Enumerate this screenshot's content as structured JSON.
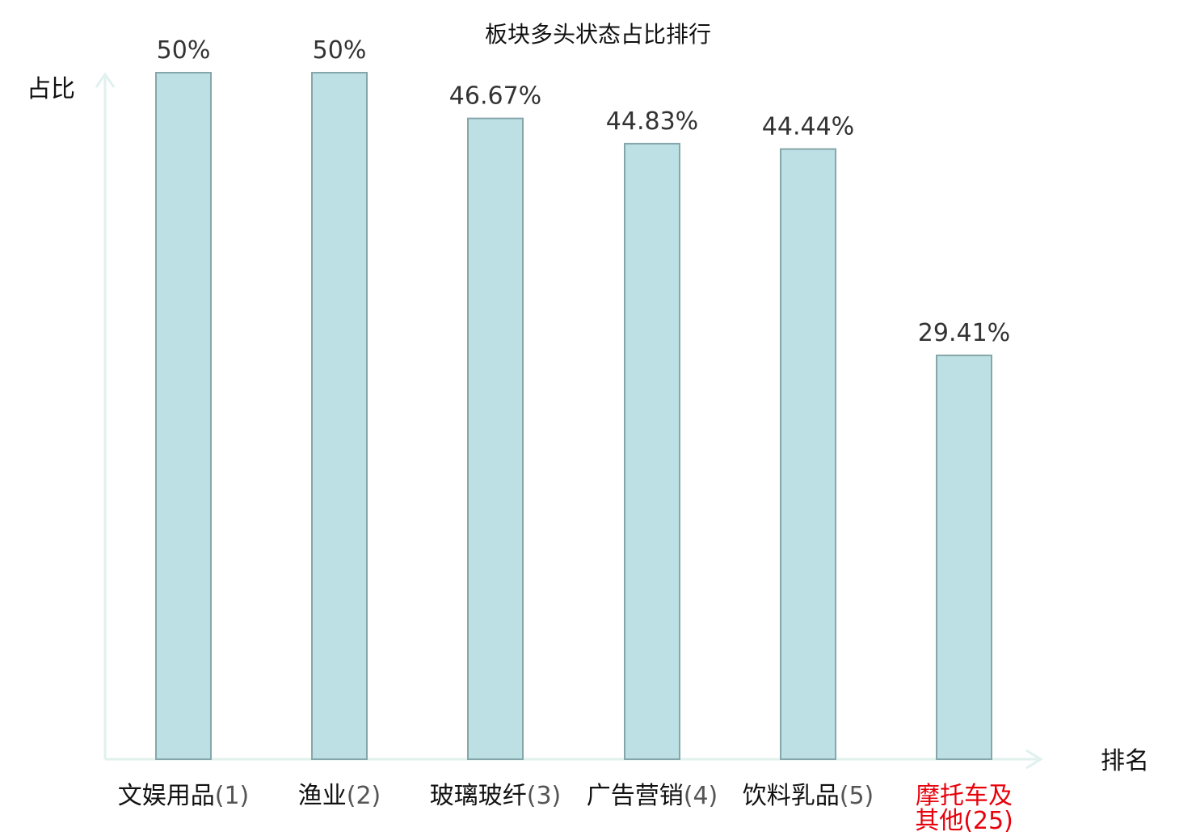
{
  "chart_data": {
    "type": "bar",
    "title": "板块多头状态占比排行",
    "xlabel": "排名",
    "ylabel": "占比",
    "ylim": [
      0,
      50
    ],
    "grid": false,
    "categories": [
      {
        "name_lines": [
          "文娱用品"
        ],
        "rank": "(1)",
        "highlight": false
      },
      {
        "name_lines": [
          "渔业"
        ],
        "rank": "(2)",
        "highlight": false
      },
      {
        "name_lines": [
          "玻璃玻纤"
        ],
        "rank": "(3)",
        "highlight": false
      },
      {
        "name_lines": [
          "广告营销"
        ],
        "rank": "(4)",
        "highlight": false
      },
      {
        "name_lines": [
          "饮料乳品"
        ],
        "rank": "(5)",
        "highlight": false
      },
      {
        "name_lines": [
          "摩托车及",
          "其他"
        ],
        "rank": "(25)",
        "highlight": true
      }
    ],
    "values": [
      50,
      50,
      46.67,
      44.83,
      44.44,
      29.41
    ],
    "value_labels": [
      "50%",
      "50%",
      "46.67%",
      "44.83%",
      "44.44%",
      "29.41%"
    ],
    "colors": {
      "bar_fill": "#bce0e3",
      "bar_stroke": "#86a7a9",
      "axis": "#e0f1ee",
      "highlight_text": "#e8000b",
      "normal_text": "#111111",
      "rank_text": "#555555",
      "value_text": "#333333"
    }
  }
}
